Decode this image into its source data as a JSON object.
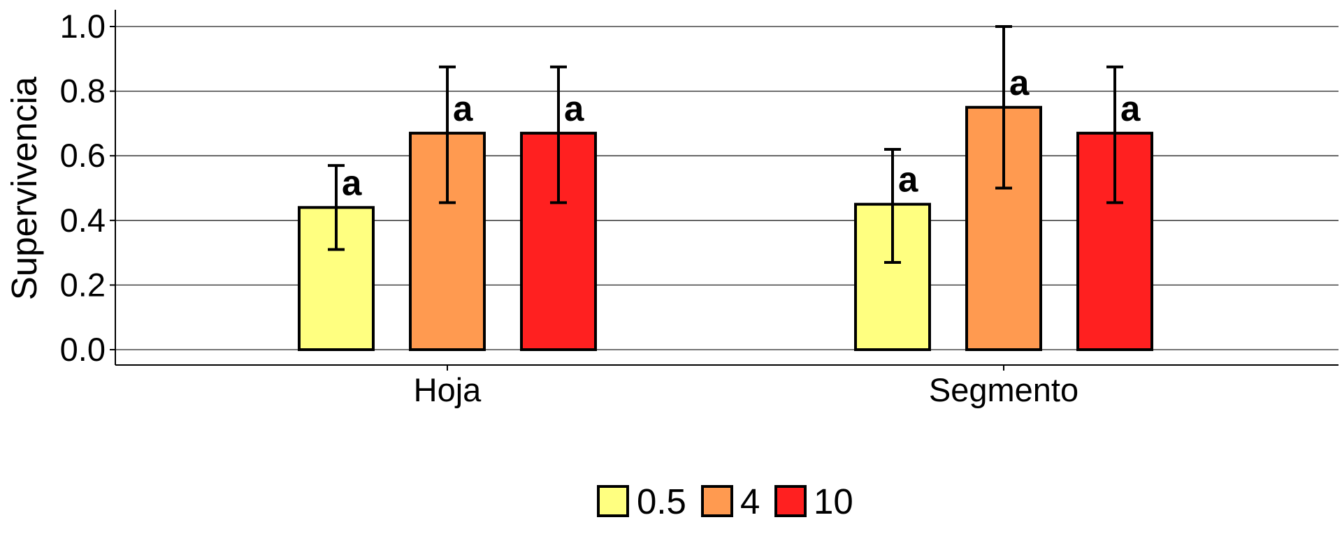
{
  "chart_data": {
    "type": "bar",
    "ylabel": "Supervivencia",
    "xlabel": "",
    "ylim": [
      0,
      1.0
    ],
    "yticks": [
      "0.0",
      "0.2",
      "0.4",
      "0.6",
      "0.8",
      "1.0"
    ],
    "grid": "horizontal",
    "legend_position": "bottom",
    "categories": [
      "Hoja",
      "Segmento"
    ],
    "series": [
      {
        "name": "0.5",
        "color": "#FFFF80",
        "values": [
          0.44,
          0.45
        ],
        "err_low": [
          0.31,
          0.27
        ],
        "err_high": [
          0.57,
          0.62
        ],
        "labels": [
          "a",
          "a"
        ]
      },
      {
        "name": "4",
        "color": "#FF9A50",
        "values": [
          0.67,
          0.75
        ],
        "err_low": [
          0.455,
          0.5
        ],
        "err_high": [
          0.875,
          1.0
        ],
        "labels": [
          "a",
          "a"
        ]
      },
      {
        "name": "10",
        "color": "#FF2020",
        "values": [
          0.67,
          0.67
        ],
        "err_low": [
          0.455,
          0.455
        ],
        "err_high": [
          0.875,
          0.875
        ],
        "labels": [
          "a",
          "a"
        ]
      }
    ]
  }
}
